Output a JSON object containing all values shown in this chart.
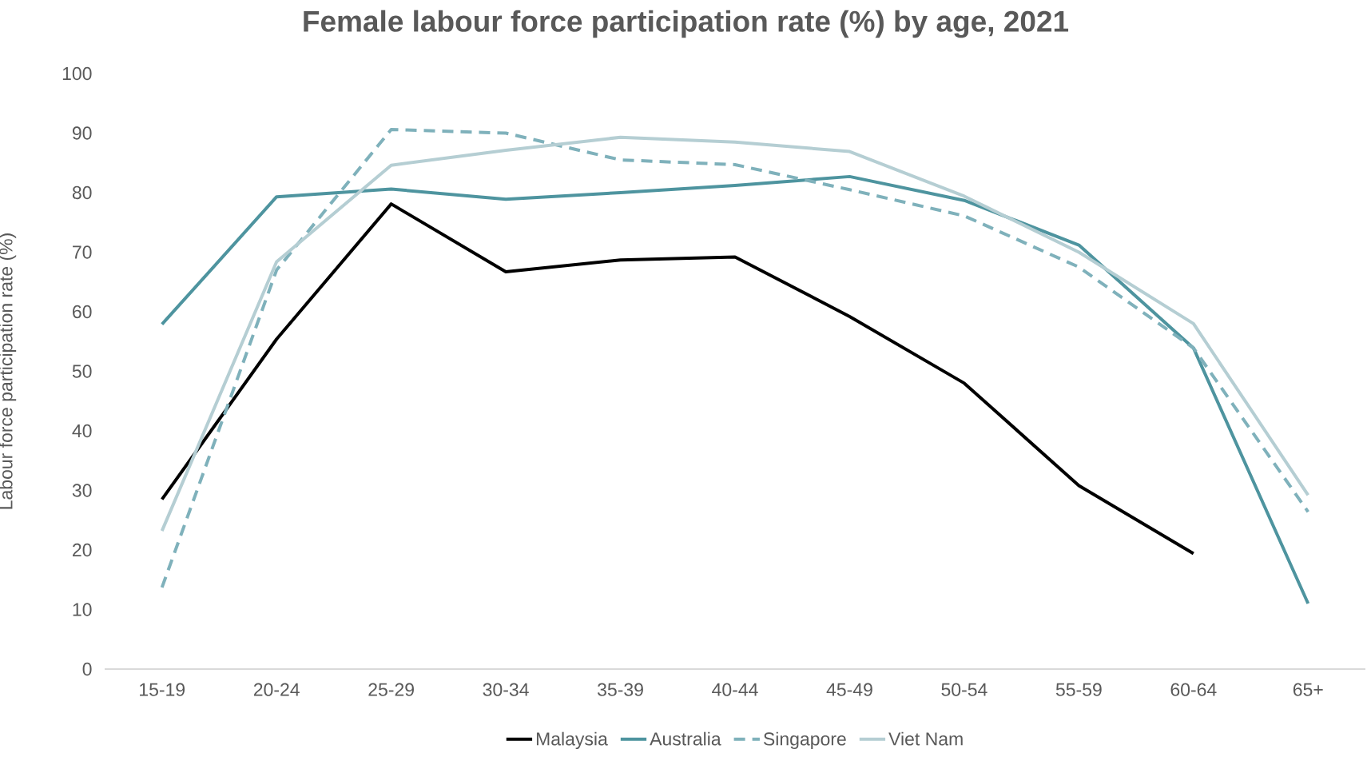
{
  "chart_data": {
    "type": "line",
    "title": "Female labour force participation rate (%) by age, 2021",
    "ylabel": "Labour force participation rate (%)",
    "categories": [
      "15-19",
      "20-24",
      "25-29",
      "30-34",
      "35-39",
      "40-44",
      "45-49",
      "50-54",
      "55-59",
      "60-64",
      "65+"
    ],
    "ylim": [
      0,
      100
    ],
    "yticks": [
      0,
      10,
      20,
      30,
      40,
      50,
      60,
      70,
      80,
      90,
      100
    ],
    "legend": "bottom",
    "series": [
      {
        "name": "Malaysia",
        "color": "#000000",
        "line_style": "solid",
        "values": [
          28.5,
          55.4,
          78.1,
          66.7,
          68.7,
          69.2,
          59.2,
          48.0,
          30.8,
          19.4,
          null
        ]
      },
      {
        "name": "Australia",
        "color": "#4e949f",
        "line_style": "solid",
        "values": [
          57.9,
          79.3,
          80.6,
          78.9,
          80.0,
          81.2,
          82.7,
          78.7,
          71.2,
          53.9,
          11.0
        ]
      },
      {
        "name": "Singapore",
        "color": "#7fb1bb",
        "line_style": "dashed",
        "values": [
          13.7,
          67.0,
          90.6,
          90.0,
          85.5,
          84.7,
          80.5,
          76.1,
          67.5,
          53.9,
          26.4
        ]
      },
      {
        "name": "Viet Nam",
        "color": "#b5ced3",
        "line_style": "solid",
        "values": [
          23.2,
          68.4,
          84.6,
          87.1,
          89.3,
          88.5,
          86.9,
          79.4,
          70.0,
          58.0,
          29.2
        ]
      }
    ]
  }
}
